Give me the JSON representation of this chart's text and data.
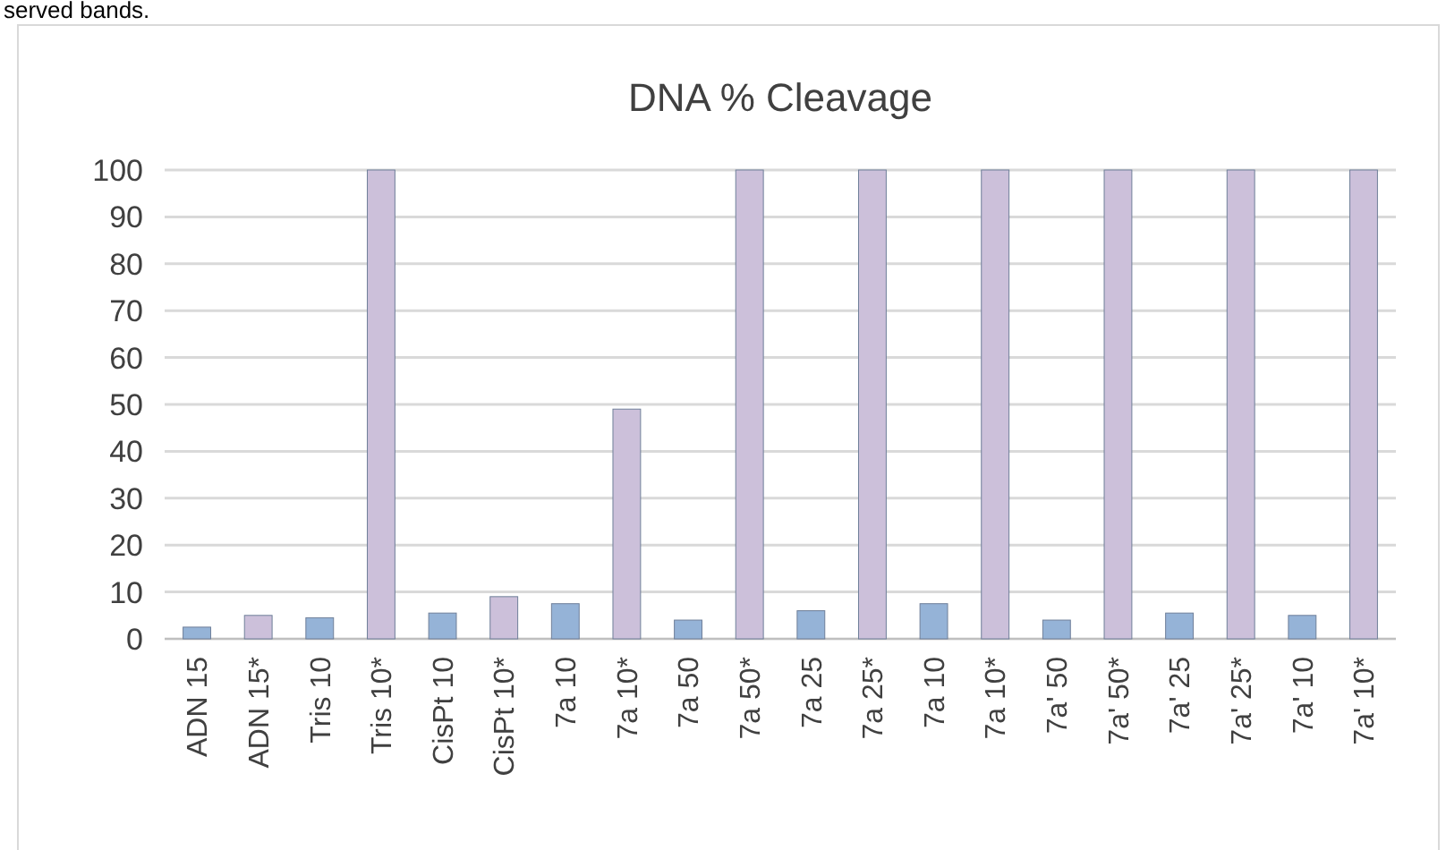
{
  "chart_data": {
    "type": "bar",
    "title": "DNA % Cleavage",
    "annotations": [
      "served bands."
    ],
    "categories": [
      "ADN 15",
      "ADN 15*",
      "Tris 10",
      "Tris 10*",
      "CisPt 10",
      "CisPt 10*",
      "7a 10",
      "7a 10*",
      "7a 50",
      "7a 50*",
      "7a 25",
      "7a 25*",
      "7a 10",
      "7a 10*",
      "7a' 50",
      "7a' 50*",
      "7a' 25",
      "7a' 25*",
      "7a' 10",
      "7a' 10*"
    ],
    "values": [
      2.5,
      5,
      4.5,
      100,
      5.5,
      9,
      7.5,
      49,
      4,
      100,
      6,
      100,
      7.5,
      100,
      4,
      100,
      5.5,
      100,
      5,
      100
    ],
    "colors": [
      "#95b3d7",
      "#ccc0da",
      "#95b3d7",
      "#ccc0da",
      "#95b3d7",
      "#ccc0da",
      "#95b3d7",
      "#ccc0da",
      "#95b3d7",
      "#ccc0da",
      "#95b3d7",
      "#ccc0da",
      "#95b3d7",
      "#ccc0da",
      "#95b3d7",
      "#ccc0da",
      "#95b3d7",
      "#ccc0da",
      "#95b3d7",
      "#ccc0da"
    ],
    "ylim": [
      0,
      100
    ],
    "yticks": [
      0,
      10,
      20,
      30,
      40,
      50,
      60,
      70,
      80,
      90,
      100
    ],
    "grid": "y"
  }
}
